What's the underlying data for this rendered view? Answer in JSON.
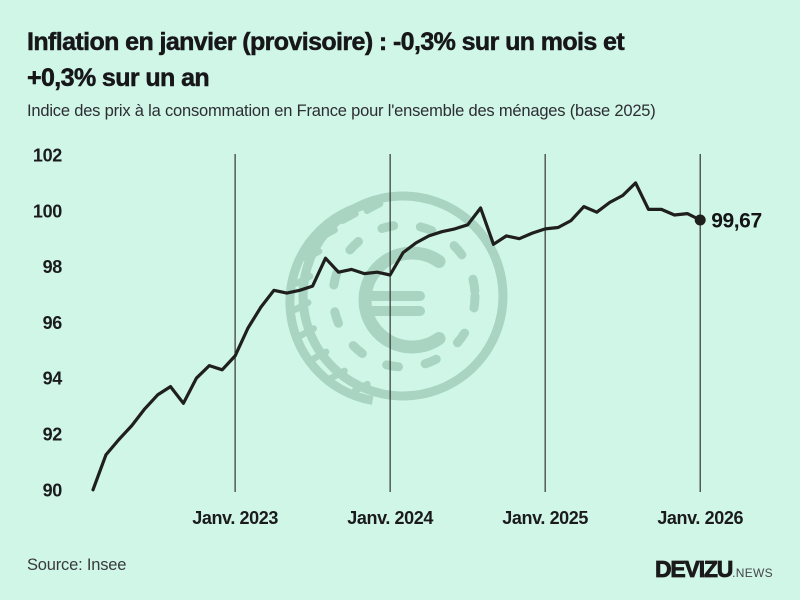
{
  "header": {
    "title": "Inflation en janvier (provisoire) : -0,3% sur un mois et\n+0,3% sur un an",
    "subtitle": "Indice des prix à la consommation en France pour l'ensemble des ménages (base 2025)"
  },
  "chart_data": {
    "type": "line",
    "title": "Indice des prix à la consommation en France (base 2025)",
    "x_monthly_start": "2022-02",
    "x_monthly_end": "2026-01",
    "series": [
      {
        "name": "Indice des prix à la consommation",
        "values": [
          90.0,
          91.25,
          91.8,
          92.3,
          92.9,
          93.4,
          93.7,
          93.1,
          94.0,
          94.45,
          94.3,
          94.8,
          95.8,
          96.55,
          97.15,
          97.05,
          97.15,
          97.3,
          98.3,
          97.8,
          97.9,
          97.75,
          97.8,
          97.7,
          98.5,
          98.85,
          99.1,
          99.25,
          99.35,
          99.5,
          100.1,
          98.8,
          99.1,
          99.0,
          99.2,
          99.35,
          99.4,
          99.65,
          100.15,
          99.95,
          100.3,
          100.55,
          101.0,
          100.05,
          100.05,
          99.85,
          99.9,
          99.67
        ]
      }
    ],
    "x_tick_labels": [
      "Janv. 2023",
      "Janv. 2024",
      "Janv. 2025",
      "Janv. 2026"
    ],
    "x_tick_month_indices": [
      11,
      23,
      35,
      47
    ],
    "y_ticks": [
      102,
      100,
      98,
      96,
      94,
      92,
      90
    ],
    "ylim": [
      90,
      102
    ],
    "grid": "vertical-only",
    "legend": "none",
    "end_point_label": "99,67",
    "end_point_value": 99.67
  },
  "watermark": {
    "icon": "euro-coin-icon"
  },
  "footer": {
    "source": "Source: Insee",
    "logo_main": "DEVIZU",
    "logo_suffix": ".NEWS"
  },
  "colors": {
    "background": "#d0f6e7",
    "line": "#1f1f1e",
    "grid": "#333333",
    "watermark": "#a9d4c2",
    "title_text": "#17171a",
    "subtitle_text": "#2d2d33",
    "source_text": "#3a3a3e",
    "logo_main": "#1a1a1c",
    "logo_suffix": "#46464a"
  }
}
